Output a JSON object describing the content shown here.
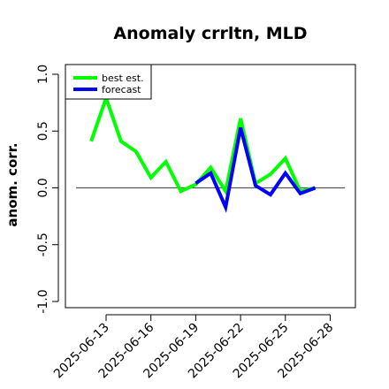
{
  "chart_data": {
    "type": "line",
    "title": "Anomaly crrltn, MLD",
    "xlabel": "",
    "ylabel": "anom. corr.",
    "ylim": [
      -1.0,
      1.0
    ],
    "yticks": [
      "-1.0",
      "-0.5",
      "0.0",
      "0.5",
      "1.0"
    ],
    "xticks": [
      "2025-06-13",
      "2025-06-16",
      "2025-06-19",
      "2025-06-22",
      "2025-06-25",
      "2025-06-28"
    ],
    "highlight_xtick": "2025-06-19",
    "highlight_color": "#228b22",
    "reference_line_y": 0.0,
    "legend_position": "top-left",
    "series": [
      {
        "name": "best est.",
        "color": "#00ff00",
        "x": [
          "2025-06-12",
          "2025-06-13",
          "2025-06-14",
          "2025-06-15",
          "2025-06-16",
          "2025-06-17",
          "2025-06-18",
          "2025-06-19",
          "2025-06-20",
          "2025-06-21",
          "2025-06-22",
          "2025-06-23",
          "2025-06-24",
          "2025-06-25",
          "2025-06-26",
          "2025-06-27"
        ],
        "values": [
          0.41,
          0.79,
          0.41,
          0.32,
          0.09,
          0.23,
          -0.03,
          0.03,
          0.18,
          -0.03,
          0.61,
          0.04,
          0.12,
          0.26,
          -0.03,
          0.0
        ]
      },
      {
        "name": "forecast",
        "color": "#0000ff",
        "x": [
          "2025-06-19",
          "2025-06-20",
          "2025-06-21",
          "2025-06-22",
          "2025-06-23",
          "2025-06-24",
          "2025-06-25",
          "2025-06-26",
          "2025-06-27"
        ],
        "values": [
          0.04,
          0.13,
          -0.17,
          0.53,
          0.02,
          -0.06,
          0.13,
          -0.05,
          0.0
        ]
      }
    ]
  }
}
